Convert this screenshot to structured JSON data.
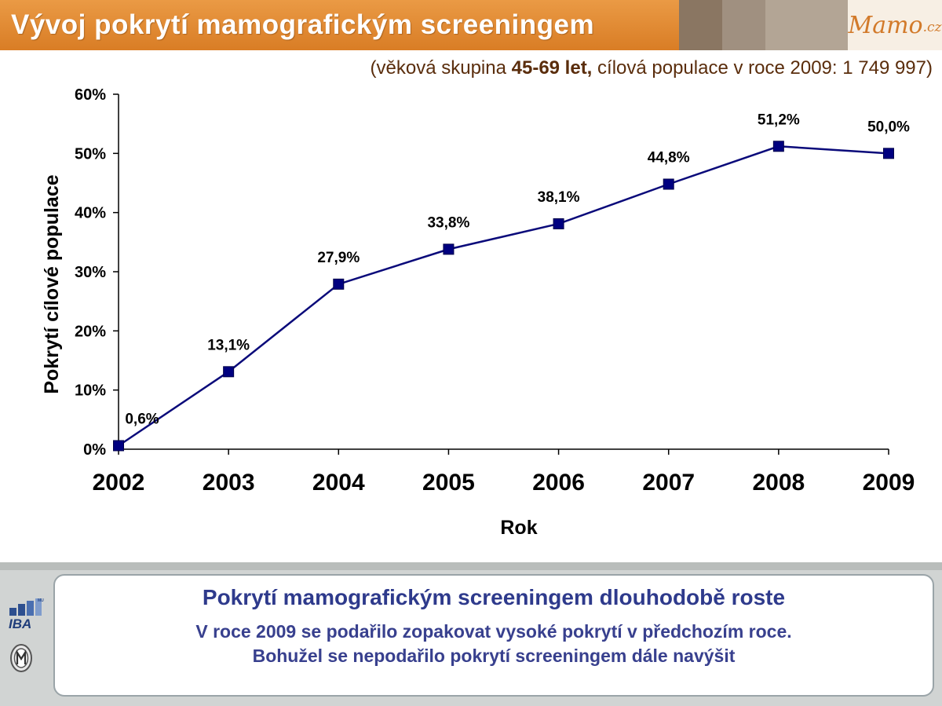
{
  "header": {
    "title": "Vývoj pokrytí mamografickým screeningem",
    "logo_main": "Mamo",
    "logo_suffix": ".cz",
    "stripe_colors": [
      "#8a7662",
      "#a09080",
      "#b3a595"
    ]
  },
  "subtitle": {
    "prefix": "(věková skupina ",
    "bold": "45-69 let,",
    "suffix": " cílová populace v roce 2009: 1 749 997)"
  },
  "chart_data": {
    "type": "line",
    "x": [
      "2002",
      "2003",
      "2004",
      "2005",
      "2006",
      "2007",
      "2008",
      "2009"
    ],
    "series": [
      {
        "values": [
          0.6,
          13.1,
          27.9,
          33.8,
          38.1,
          44.8,
          51.2,
          50.0
        ],
        "labels": [
          "0,6%",
          "13,1%",
          "27,9%",
          "33,8%",
          "38,1%",
          "44,8%",
          "51,2%",
          "50,0%"
        ]
      }
    ],
    "ylim": [
      0,
      60
    ],
    "yticks": [
      "0%",
      "10%",
      "20%",
      "30%",
      "40%",
      "50%",
      "60%"
    ],
    "xlabel": "Rok",
    "ylabel": "Pokrytí cílové populace",
    "grid": false,
    "line_color": "#0a0a7a",
    "marker_color": "#000080",
    "marker": "square"
  },
  "message": {
    "headline": "Pokrytí mamografickým screeningem dlouhodobě roste",
    "line1": "V roce 2009 se podařilo zopakovat vysoké pokrytí v předchozím roce.",
    "line2": "Bohužel se nepodařilo pokrytí screeningem dále navýšit"
  },
  "logos": {
    "iba_text": "IBA",
    "iba_small": "MU"
  }
}
